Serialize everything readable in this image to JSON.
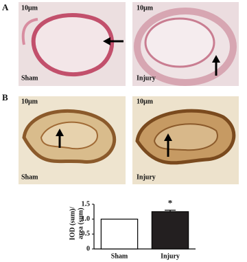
{
  "panels": [
    {
      "label": "A",
      "images": [
        {
          "scale": "10μm",
          "caption": "Sham"
        },
        {
          "scale": "10μm",
          "caption": "Injury"
        }
      ]
    },
    {
      "label": "B",
      "images": [
        {
          "scale": "10μm",
          "caption": "Sham"
        },
        {
          "scale": "10μm",
          "caption": "Injury"
        }
      ]
    }
  ],
  "chart_data": {
    "type": "bar",
    "ylabel": [
      "IOD (sum)/",
      "area (sum)"
    ],
    "categories": [
      "Sham",
      "Injury"
    ],
    "values": [
      1.0,
      1.25
    ],
    "errors": [
      null,
      0.05
    ],
    "colors": [
      "#ffffff",
      "#231f20"
    ],
    "annotations": [
      "*"
    ],
    "ylim": [
      0,
      1.5
    ],
    "yticks": [
      0,
      0.5,
      {
        "value": 1,
        "label": "1.0"
      },
      1.5
    ]
  }
}
